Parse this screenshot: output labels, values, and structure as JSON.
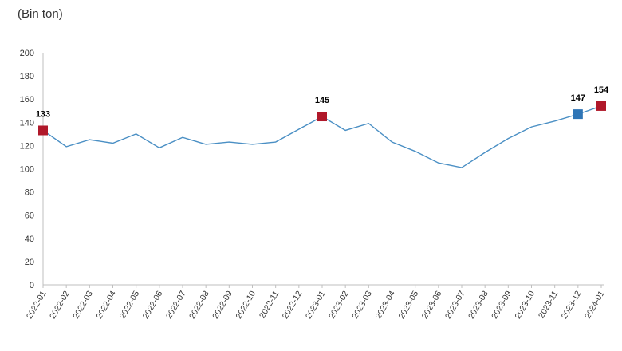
{
  "unit_label": "(Bin ton)",
  "colors": {
    "line": "#4a8fc4",
    "marker_red": "#b0182a",
    "marker_blue": "#2e75b6",
    "axis": "#bfbfbf"
  },
  "chart_data": {
    "type": "line",
    "title": "",
    "xlabel": "",
    "ylabel": "(Bin ton)",
    "ylim": [
      0,
      200
    ],
    "yticks": [
      0,
      20,
      40,
      60,
      80,
      100,
      120,
      140,
      160,
      180,
      200
    ],
    "grid": false,
    "categories": [
      "2022-01",
      "2022-02",
      "2022-03",
      "2022-04",
      "2022-05",
      "2022-06",
      "2022-07",
      "2022-08",
      "2022-09",
      "2022-10",
      "2022-11",
      "2022-12",
      "2023-01",
      "2023-02",
      "2023-03",
      "2023-04",
      "2023-05",
      "2023-06",
      "2023-07",
      "2023-08",
      "2023-09",
      "2023-10",
      "2023-11",
      "2023-12",
      "2024-01"
    ],
    "values": [
      133,
      119,
      125,
      122,
      130,
      118,
      127,
      121,
      123,
      121,
      123,
      134,
      145,
      133,
      139,
      123,
      115,
      105,
      101,
      114,
      126,
      136,
      141,
      147,
      154
    ],
    "markers": [
      {
        "index": 0,
        "label": "133",
        "color": "red"
      },
      {
        "index": 12,
        "label": "145",
        "color": "red"
      },
      {
        "index": 23,
        "label": "147",
        "color": "blue"
      },
      {
        "index": 24,
        "label": "154",
        "color": "red"
      }
    ]
  }
}
